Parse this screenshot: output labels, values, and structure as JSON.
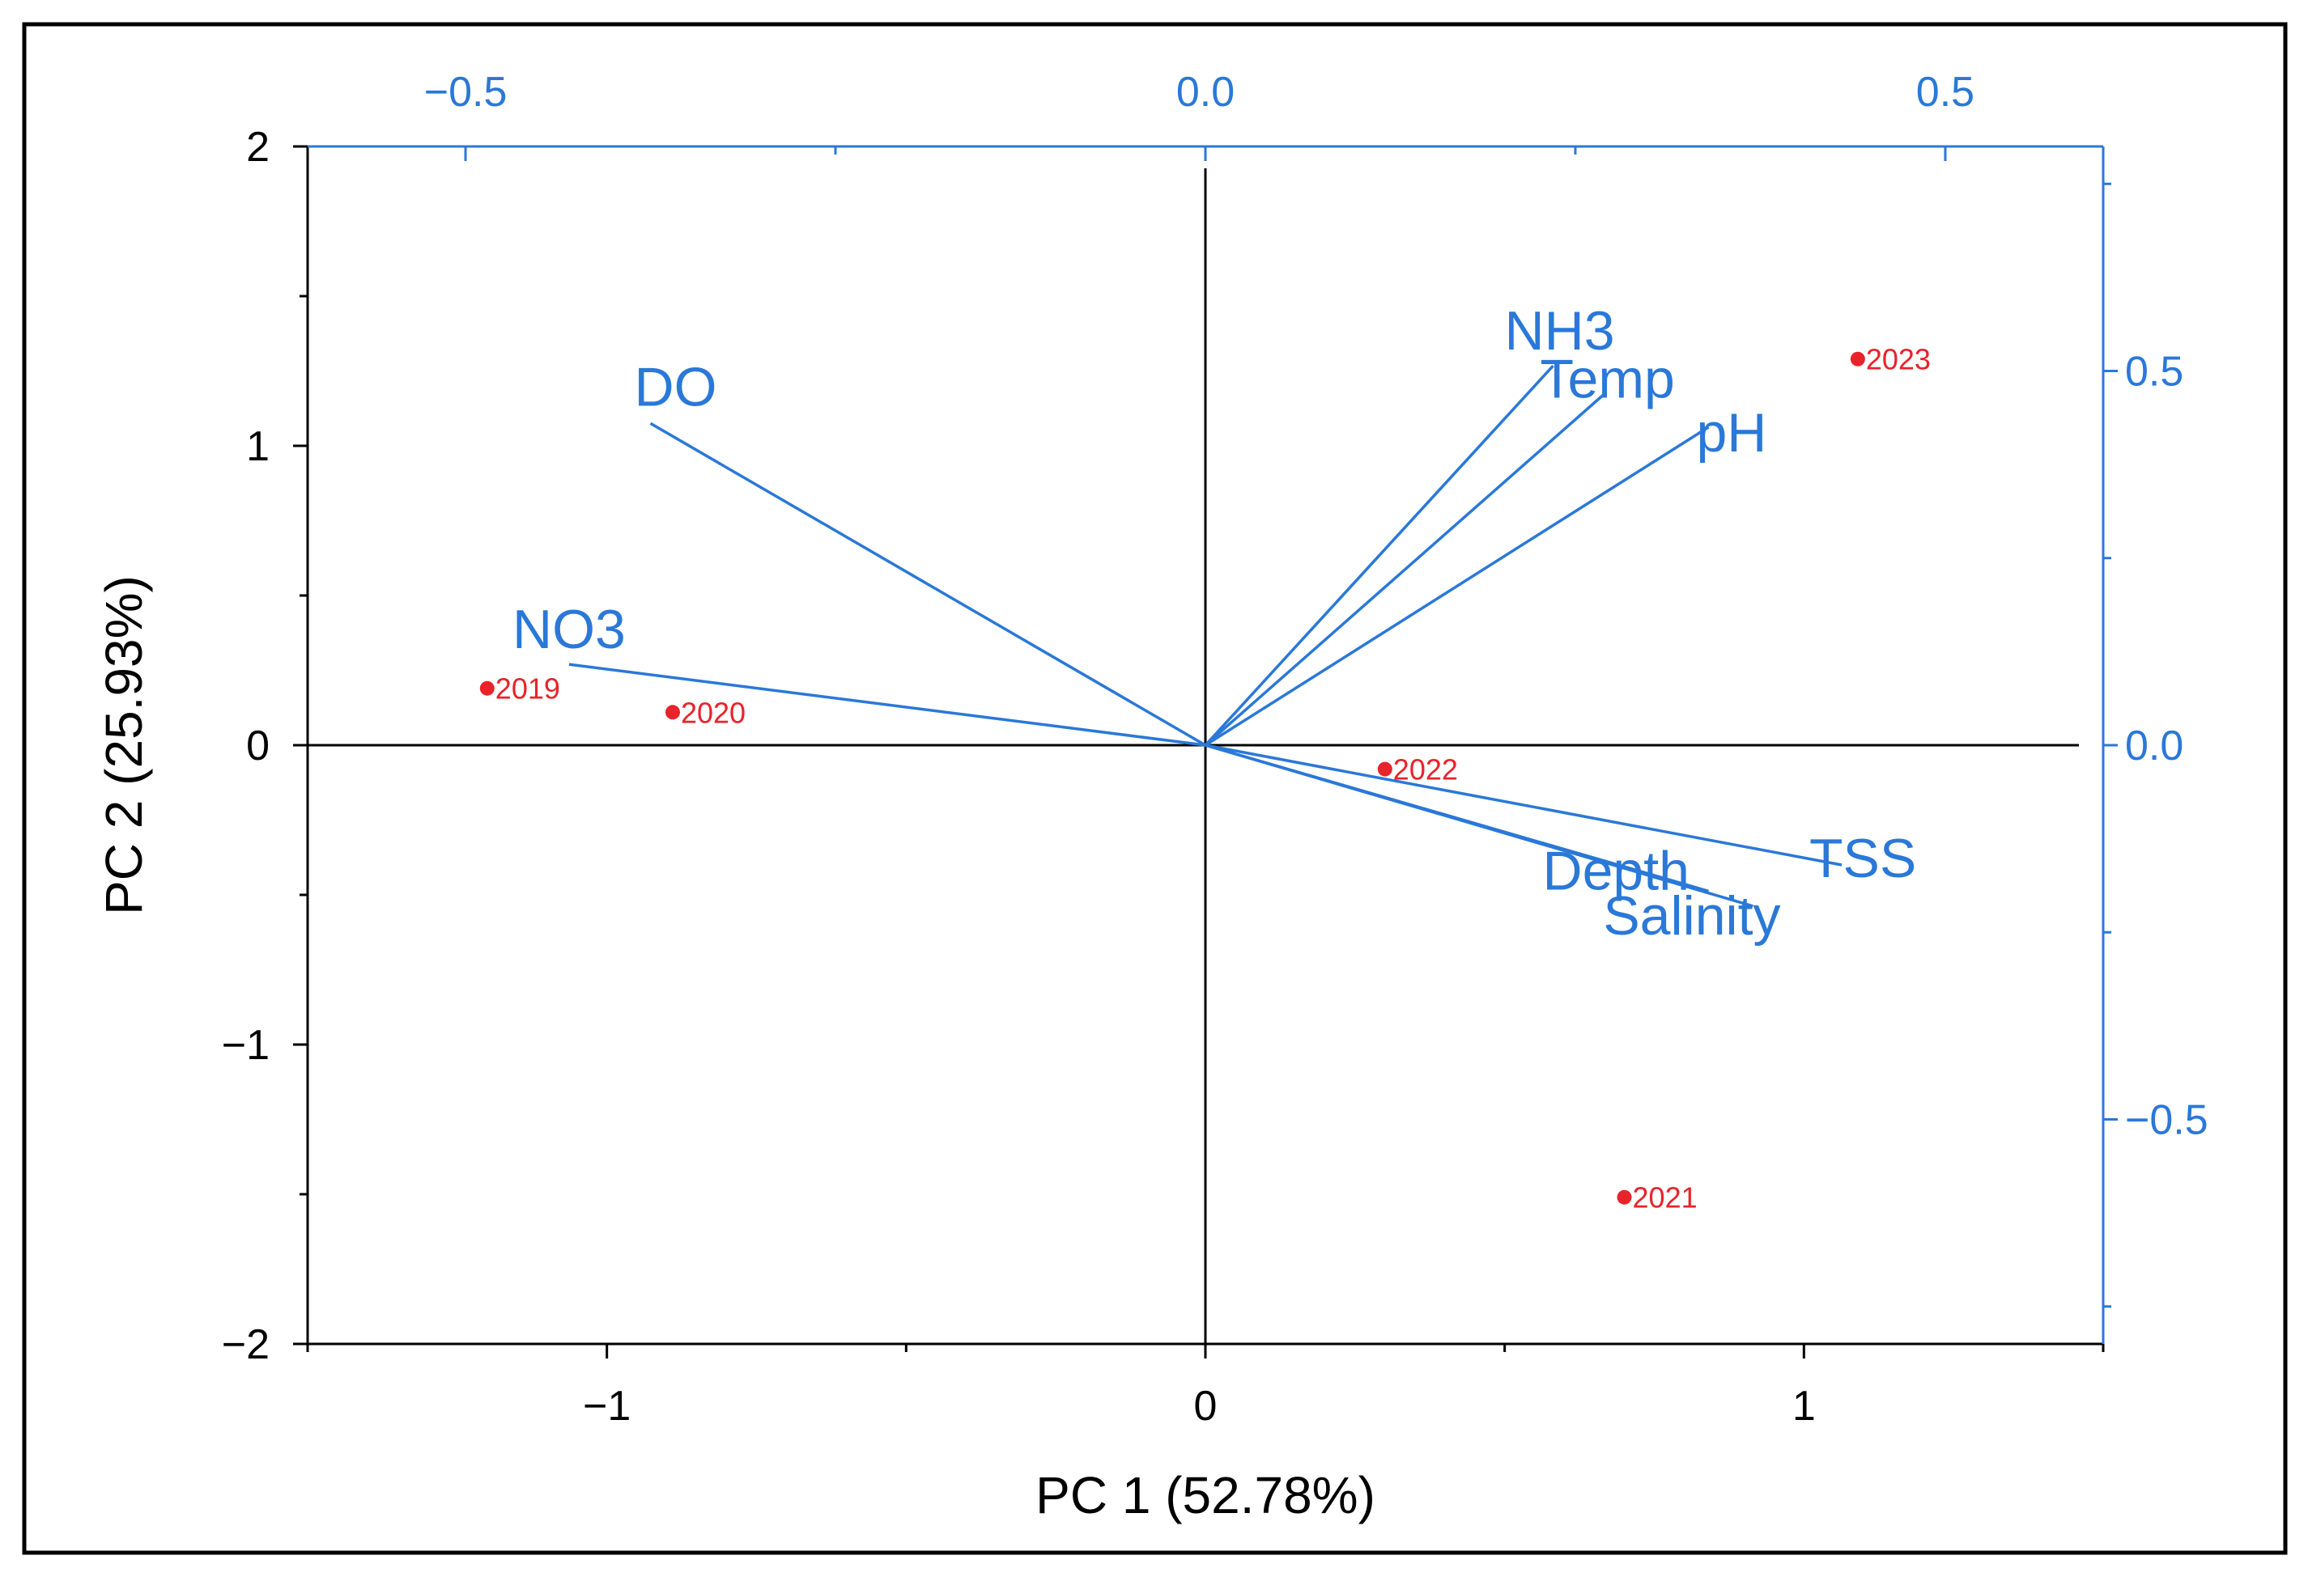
{
  "colors": {
    "primary_axis": "#000000",
    "secondary_axis": "#2a78d8",
    "loadings": "#2a78d8",
    "scores": "#e8232a",
    "frame": "#000000",
    "background": "#ffffff"
  },
  "chart_data": {
    "type": "scatter",
    "subtype": "pca-biplot",
    "xlabel": "PC 1 (52.78%)",
    "ylabel": "PC 2 (25.93%)",
    "xlim": [
      -1.5,
      1.5
    ],
    "ylim": [
      -2,
      2
    ],
    "x_ticks": [
      -1,
      0,
      1
    ],
    "x_tick_labels": [
      "−1",
      "0",
      "1"
    ],
    "y_ticks": [
      -2,
      -1,
      0,
      1,
      2
    ],
    "y_tick_labels": [
      "−2",
      "−1",
      "0",
      "1",
      "2"
    ],
    "secondary_xlim": [
      -0.6067,
      0.6067
    ],
    "secondary_ylim": [
      -0.8,
      0.8
    ],
    "secondary_x_ticks": [
      -0.5,
      0.0,
      0.5
    ],
    "secondary_x_tick_labels": [
      "−0.5",
      "0.0",
      "0.5"
    ],
    "secondary_y_ticks": [
      -0.5,
      0.0,
      0.5
    ],
    "secondary_y_tick_labels": [
      "−0.5",
      "0.0",
      "0.5"
    ],
    "scores": [
      {
        "label": "2019",
        "x": -1.2,
        "y": 0.19
      },
      {
        "label": "2020",
        "x": -0.89,
        "y": 0.11
      },
      {
        "label": "2022",
        "x": 0.3,
        "y": -0.08
      },
      {
        "label": "2023",
        "x": 1.09,
        "y": 1.29
      },
      {
        "label": "2021",
        "x": 0.7,
        "y": -1.51
      }
    ],
    "loadings": [
      {
        "label": "DO",
        "x": -0.375,
        "y": 0.43
      },
      {
        "label": "NO3",
        "x": -0.43,
        "y": 0.108
      },
      {
        "label": "NH3",
        "x": 0.235,
        "y": 0.507
      },
      {
        "label": "Temp",
        "x": 0.27,
        "y": 0.47
      },
      {
        "label": "pH",
        "x": 0.34,
        "y": 0.425
      },
      {
        "label": "TSS",
        "x": 0.43,
        "y": -0.16
      },
      {
        "label": "Depth",
        "x": 0.34,
        "y": -0.195
      },
      {
        "label": "Salinity",
        "x": 0.37,
        "y": -0.215
      }
    ]
  }
}
